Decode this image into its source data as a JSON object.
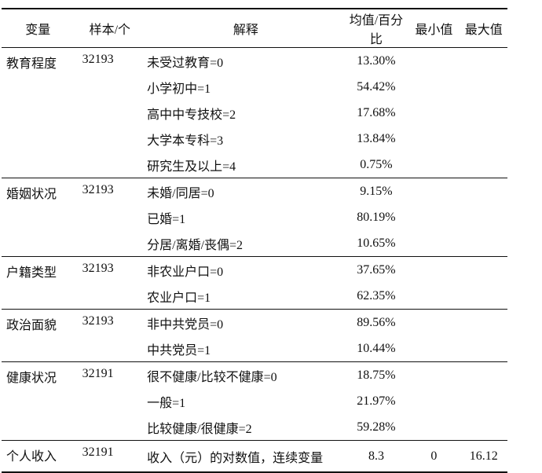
{
  "header": {
    "variable": "变量",
    "sample": "样本/个",
    "explanation": "解释",
    "mean_pct": "均值/百分比",
    "min": "最小值",
    "max": "最大值"
  },
  "groups": [
    {
      "variable": "教育程度",
      "sample": "32193",
      "rows": [
        {
          "explanation": "未受过教育=0",
          "mean": "13.30%",
          "min": "",
          "max": ""
        },
        {
          "explanation": "小学初中=1",
          "mean": "54.42%",
          "min": "",
          "max": ""
        },
        {
          "explanation": "高中中专技校=2",
          "mean": "17.68%",
          "min": "",
          "max": ""
        },
        {
          "explanation": "大学本专科=3",
          "mean": "13.84%",
          "min": "",
          "max": ""
        },
        {
          "explanation": "研究生及以上=4",
          "mean": "0.75%",
          "min": "",
          "max": ""
        }
      ]
    },
    {
      "variable": "婚姻状况",
      "sample": "32193",
      "rows": [
        {
          "explanation": "未婚/同居=0",
          "mean": "9.15%",
          "min": "",
          "max": ""
        },
        {
          "explanation": "已婚=1",
          "mean": "80.19%",
          "min": "",
          "max": ""
        },
        {
          "explanation": "分居/离婚/丧偶=2",
          "mean": "10.65%",
          "min": "",
          "max": ""
        }
      ]
    },
    {
      "variable": "户籍类型",
      "sample": "32193",
      "rows": [
        {
          "explanation": "非农业户口=0",
          "mean": "37.65%",
          "min": "",
          "max": ""
        },
        {
          "explanation": "农业户口=1",
          "mean": "62.35%",
          "min": "",
          "max": ""
        }
      ]
    },
    {
      "variable": "政治面貌",
      "sample": "32193",
      "rows": [
        {
          "explanation": "非中共党员=0",
          "mean": "89.56%",
          "min": "",
          "max": ""
        },
        {
          "explanation": "中共党员=1",
          "mean": "10.44%",
          "min": "",
          "max": ""
        }
      ]
    },
    {
      "variable": "健康状况",
      "sample": "32191",
      "rows": [
        {
          "explanation": "很不健康/比较不健康=0",
          "mean": "18.75%",
          "min": "",
          "max": ""
        },
        {
          "explanation": "一般=1",
          "mean": "21.97%",
          "min": "",
          "max": ""
        },
        {
          "explanation": "比较健康/很健康=2",
          "mean": "59.28%",
          "min": "",
          "max": ""
        }
      ]
    },
    {
      "variable": "个人收入",
      "sample": "32191",
      "rows": [
        {
          "explanation": "收入（元）的对数值，连续变量",
          "mean": "8.3",
          "min": "0",
          "max": "16.12"
        }
      ]
    }
  ]
}
